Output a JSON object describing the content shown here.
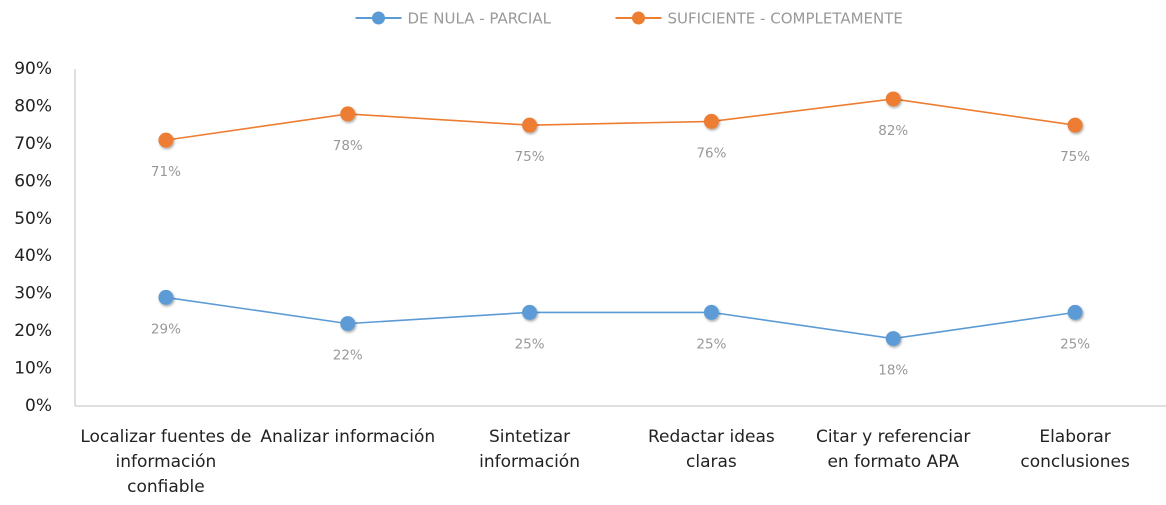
{
  "chart_data": {
    "type": "line",
    "categories": [
      "Localizar fuentes de información confiable",
      "Analizar información",
      "Sintetizar información",
      "Redactar ideas claras",
      "Citar y referenciar en formato APA",
      "Elaborar conclusiones"
    ],
    "series": [
      {
        "name": "DE NULA - PARCIAL",
        "color": "#5b9bd5",
        "values": [
          29,
          22,
          25,
          25,
          18,
          25
        ],
        "value_labels": [
          "29%",
          "22%",
          "25%",
          "25%",
          "18%",
          "25%"
        ]
      },
      {
        "name": "SUFICIENTE - COMPLETAMENTE",
        "color": "#ed7d31",
        "values": [
          71,
          78,
          75,
          76,
          82,
          75
        ],
        "value_labels": [
          "71%",
          "78%",
          "75%",
          "76%",
          "82%",
          "75%"
        ]
      }
    ],
    "ylim": [
      0,
      90
    ],
    "yticks": [
      {
        "value": 0,
        "label": "0%"
      },
      {
        "value": 10,
        "label": "10%"
      },
      {
        "value": 20,
        "label": "20%"
      },
      {
        "value": 30,
        "label": "30%"
      },
      {
        "value": 40,
        "label": "40%"
      },
      {
        "value": 50,
        "label": "50%"
      },
      {
        "value": 60,
        "label": "60%"
      },
      {
        "value": 70,
        "label": "70%"
      },
      {
        "value": 80,
        "label": "80%"
      },
      {
        "value": 90,
        "label": "90%"
      }
    ],
    "grid": false,
    "legend": "top"
  }
}
